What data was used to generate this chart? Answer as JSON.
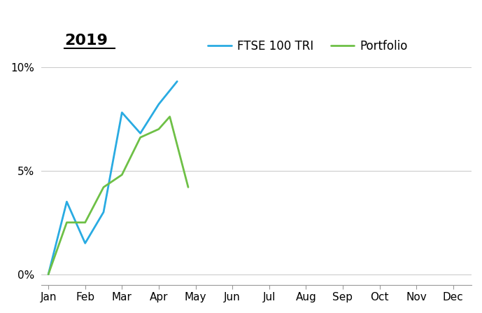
{
  "title": "2019",
  "ftse_x": [
    0,
    0.5,
    1.0,
    1.5,
    2.0,
    2.5,
    3.0,
    3.5
  ],
  "ftse_y": [
    0.0,
    3.5,
    1.5,
    3.0,
    7.8,
    6.8,
    8.2,
    9.3
  ],
  "portfolio_x": [
    0,
    0.5,
    1.0,
    1.5,
    2.0,
    2.5,
    3.0,
    3.3,
    3.8
  ],
  "portfolio_y": [
    0.0,
    2.5,
    2.5,
    4.2,
    4.8,
    6.6,
    7.0,
    7.6,
    4.2
  ],
  "ftse_color": "#29ABE2",
  "portfolio_color": "#6EC046",
  "ftse_label": "FTSE 100 TRI",
  "portfolio_label": "Portfolio",
  "xtick_labels": [
    "Jan",
    "Feb",
    "Mar",
    "Apr",
    "May",
    "Jun",
    "Jul",
    "Aug",
    "Sep",
    "Oct",
    "Nov",
    "Dec"
  ],
  "xtick_positions": [
    0,
    1,
    2,
    3,
    4,
    5,
    6,
    7,
    8,
    9,
    10,
    11
  ],
  "ytick_labels": [
    "0%",
    "5%",
    "10%"
  ],
  "ytick_positions": [
    0,
    5,
    10
  ],
  "ylim": [
    -0.5,
    10.5
  ],
  "xlim": [
    -0.2,
    11.5
  ],
  "background_color": "#ffffff",
  "grid_color": "#cccccc",
  "line_width": 2.0,
  "title_fontsize": 16,
  "legend_fontsize": 12,
  "tick_fontsize": 11
}
